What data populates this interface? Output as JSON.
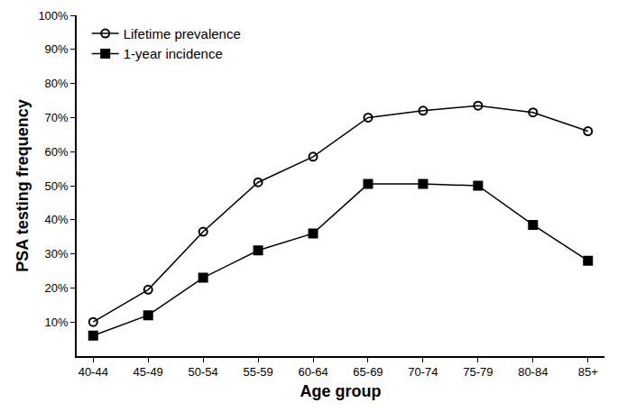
{
  "chart_data": {
    "type": "line",
    "x_label": "Age group",
    "y_label": "PSA testing frequency",
    "categories": [
      "40-44",
      "45-49",
      "50-54",
      "55-59",
      "60-64",
      "65-69",
      "70-74",
      "75-79",
      "80-84",
      "85+"
    ],
    "series": [
      {
        "name": "Lifetime prevalence",
        "color": "#000000",
        "marker": "circle-open",
        "line_style": "solid",
        "values": [
          10,
          19.5,
          36.5,
          51,
          58.5,
          70,
          72,
          73.5,
          71.5,
          66
        ]
      },
      {
        "name": "1-year incidence",
        "color": "#000000",
        "marker": "square",
        "line_style": "solid",
        "values": [
          6,
          12,
          23,
          31,
          36,
          50.5,
          50.5,
          50,
          38.5,
          28
        ]
      }
    ],
    "ylim": [
      0,
      100
    ],
    "yticks": [
      {
        "value": 10,
        "label": "10%"
      },
      {
        "value": 20,
        "label": "20%"
      },
      {
        "value": 30,
        "label": "30%"
      },
      {
        "value": 40,
        "label": "40%"
      },
      {
        "value": 50,
        "label": "50%"
      },
      {
        "value": 60,
        "label": "60%"
      },
      {
        "value": 70,
        "label": "70%"
      },
      {
        "value": 80,
        "label": "80%"
      },
      {
        "value": 90,
        "label": "90%"
      },
      {
        "value": 100,
        "label": "100%"
      }
    ],
    "grid": false,
    "legend": "top-left"
  }
}
